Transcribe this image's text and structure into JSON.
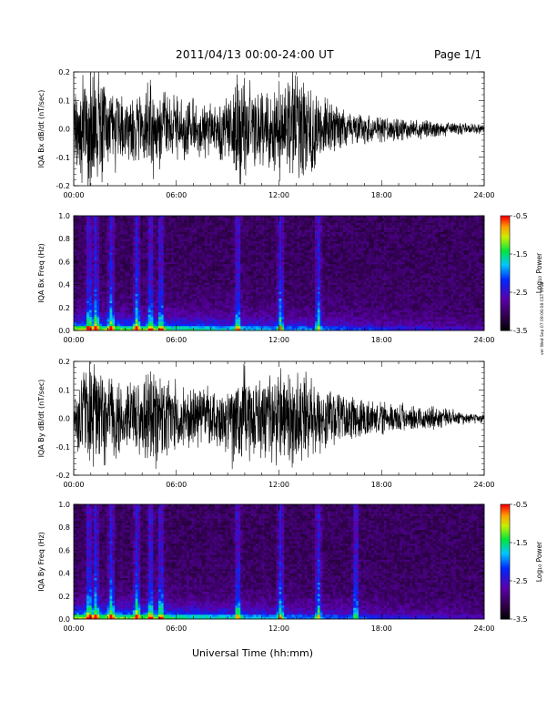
{
  "header": {
    "title": "2011/04/13   00:00-24:00 UT",
    "page": "Page 1/1"
  },
  "footnote": "ver Wed Sep 07 09:06:08 CST 2016",
  "xlabel": "Universal Time (hh:mm)",
  "colorbar": {
    "label": "Log₁₀ Power",
    "ticks": [
      "-0.5",
      "-1.5",
      "-2.5",
      "-3.5"
    ],
    "range": [
      -3.5,
      -0.5
    ]
  },
  "chart_data": [
    {
      "type": "line",
      "ylabel": "IQA Bx dB/dt (nT/sec)",
      "xlabel": "",
      "xticks": [
        "00:00",
        "06:00",
        "12:00",
        "18:00",
        "24:00"
      ],
      "yticks": [
        "0.2",
        "0.1",
        "0.0",
        "-0.1",
        "-0.2"
      ],
      "xlim": [
        0,
        24
      ],
      "ylim": [
        -0.2,
        0.2
      ],
      "units": {
        "x": "hours UT",
        "y": "nT/sec"
      },
      "envelope": {
        "x": [
          0,
          0.5,
          1,
          1.5,
          2,
          3,
          4,
          4.5,
          5,
          6,
          7,
          8,
          9,
          9.5,
          10,
          11,
          12,
          13,
          14,
          15,
          16,
          17,
          18,
          19,
          20,
          21,
          22,
          23,
          24
        ],
        "amplitude": [
          0.12,
          0.2,
          0.2,
          0.2,
          0.15,
          0.12,
          0.12,
          0.2,
          0.14,
          0.11,
          0.1,
          0.1,
          0.12,
          0.2,
          0.16,
          0.13,
          0.17,
          0.2,
          0.15,
          0.1,
          0.06,
          0.05,
          0.045,
          0.04,
          0.035,
          0.03,
          0.025,
          0.02,
          0.02
        ]
      }
    },
    {
      "type": "heatmap",
      "ylabel": "IQA Bx Freq (Hz)",
      "xlabel": "",
      "xticks": [
        "00:00",
        "06:00",
        "12:00",
        "18:00",
        "24:00"
      ],
      "yticks": [
        "1.0",
        "0.8",
        "0.6",
        "0.4",
        "0.2",
        "0.0"
      ],
      "xlim": [
        0,
        24
      ],
      "ylim": [
        0,
        1.0
      ],
      "colorscale": "rainbow",
      "zlim": [
        -3.5,
        -0.5
      ],
      "bursts_hours": [
        0.9,
        1.3,
        2.2,
        3.7,
        4.5,
        5.1,
        9.6,
        12.1,
        14.3
      ]
    },
    {
      "type": "line",
      "ylabel": "IQA By dB/dt (nT/sec)",
      "xlabel": "",
      "xticks": [
        "00:00",
        "06:00",
        "12:00",
        "18:00",
        "24:00"
      ],
      "yticks": [
        "0.2",
        "0.1",
        "0.0",
        "-0.1",
        "-0.2"
      ],
      "xlim": [
        0,
        24
      ],
      "ylim": [
        -0.2,
        0.2
      ],
      "units": {
        "x": "hours UT",
        "y": "nT/sec"
      },
      "envelope": {
        "x": [
          0,
          0.5,
          1,
          1.5,
          2,
          3,
          4,
          4.5,
          5,
          6,
          7,
          8,
          9,
          9.5,
          10,
          11,
          12,
          13,
          14,
          15,
          16,
          17,
          18,
          19,
          20,
          21,
          22,
          23,
          24
        ],
        "amplitude": [
          0.1,
          0.18,
          0.2,
          0.2,
          0.16,
          0.13,
          0.14,
          0.2,
          0.16,
          0.12,
          0.1,
          0.1,
          0.13,
          0.2,
          0.17,
          0.14,
          0.16,
          0.18,
          0.13,
          0.1,
          0.08,
          0.07,
          0.06,
          0.05,
          0.045,
          0.04,
          0.035,
          0.02,
          0.015
        ]
      }
    },
    {
      "type": "heatmap",
      "ylabel": "IQA By Freq (Hz)",
      "xlabel": "Universal Time (hh:mm)",
      "xticks": [
        "00:00",
        "06:00",
        "12:00",
        "18:00",
        "24:00"
      ],
      "yticks": [
        "1.0",
        "0.8",
        "0.6",
        "0.4",
        "0.2",
        "0.0"
      ],
      "xlim": [
        0,
        24
      ],
      "ylim": [
        0,
        1.0
      ],
      "colorscale": "rainbow",
      "zlim": [
        -3.5,
        -0.5
      ],
      "bursts_hours": [
        0.9,
        1.3,
        2.2,
        3.7,
        4.5,
        5.1,
        9.6,
        12.1,
        14.3,
        16.5
      ]
    }
  ]
}
